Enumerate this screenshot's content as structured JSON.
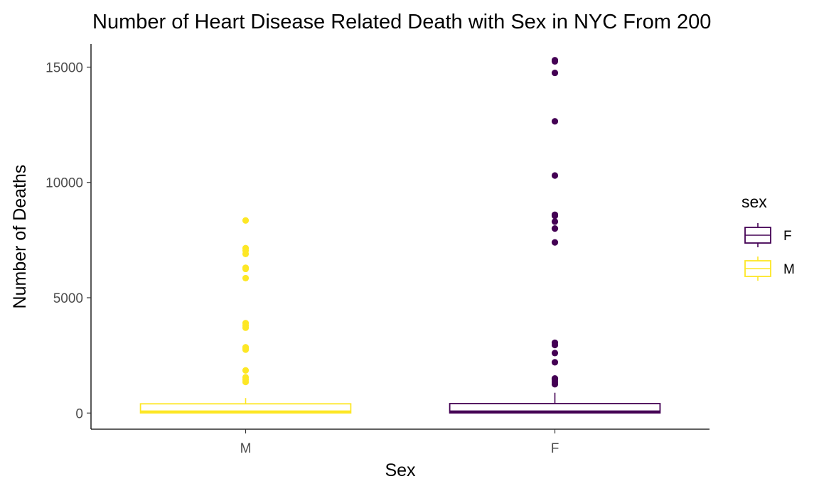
{
  "chart_data": {
    "type": "box",
    "title": "Number of Heart Disease Related Death with Sex in NYC From 200",
    "xlabel": "Sex",
    "ylabel": "Number of Deaths",
    "categories": [
      "M",
      "F"
    ],
    "ylim": [
      -700,
      16000
    ],
    "yticks": [
      0,
      5000,
      10000,
      15000
    ],
    "grid": false,
    "legend": {
      "title": "sex",
      "position": "right",
      "entries": [
        {
          "label": "F",
          "color": "#440154"
        },
        {
          "label": "M",
          "color": "#FDE725"
        }
      ]
    },
    "series": [
      {
        "name": "M",
        "color": "#FDE725",
        "q1": 6,
        "median": 50,
        "q3": 400,
        "whisker_low": 0,
        "whisker_high": 650,
        "outliers": [
          8350,
          7150,
          7050,
          6900,
          6300,
          6250,
          5850,
          3900,
          3800,
          3700,
          2850,
          2800,
          2750,
          1850,
          1550,
          1450,
          1350
        ]
      },
      {
        "name": "F",
        "color": "#440154",
        "q1": 6,
        "median": 50,
        "q3": 410,
        "whisker_low": 0,
        "whisker_high": 880,
        "outliers": [
          15300,
          15250,
          14750,
          12650,
          10300,
          8600,
          8550,
          8300,
          8000,
          7400,
          3050,
          2950,
          2600,
          2200,
          1500,
          1450,
          1350,
          1250
        ]
      }
    ]
  }
}
